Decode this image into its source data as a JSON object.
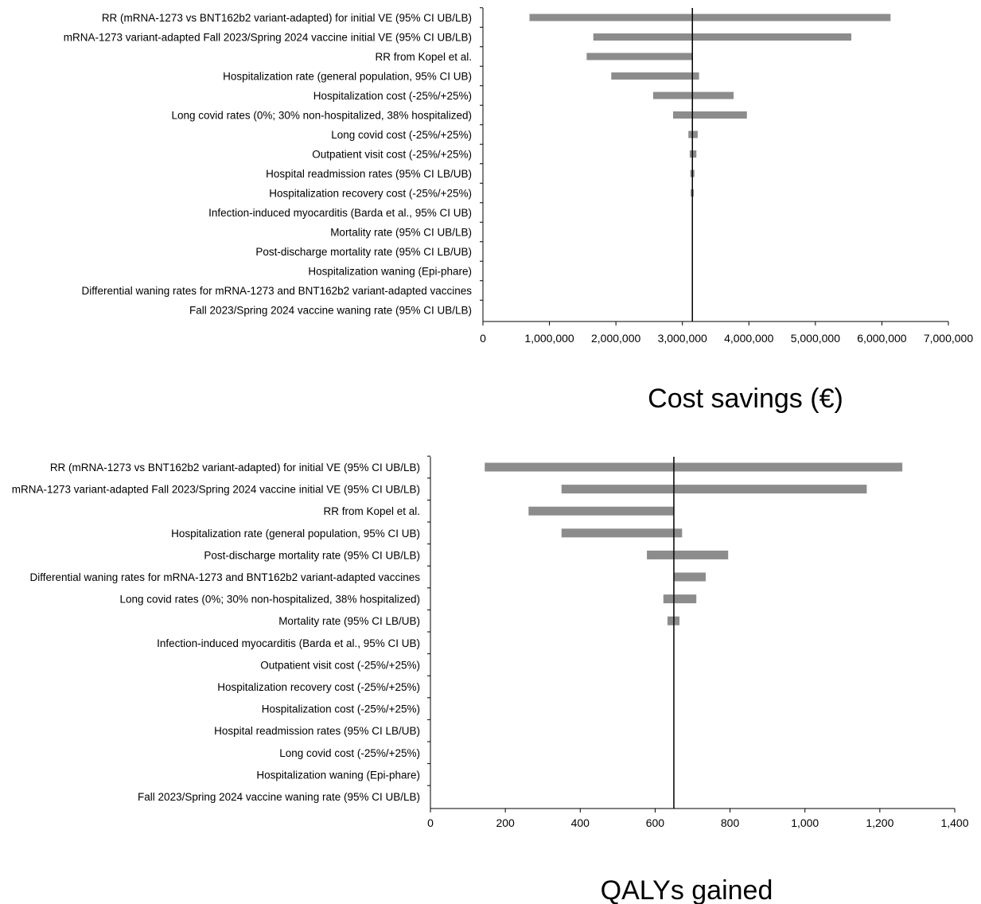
{
  "chart_data": [
    {
      "type": "bar",
      "orientation": "horizontal",
      "chart_subtype": "tornado",
      "xlabel": "Cost savings (€)",
      "xlim": [
        0,
        7000000
      ],
      "xticks": [
        0,
        1000000,
        2000000,
        3000000,
        4000000,
        5000000,
        6000000,
        7000000
      ],
      "xtick_labels": [
        "0",
        "1,000,000",
        "2,000,000",
        "3,000,000",
        "4,000,000",
        "5,000,000",
        "6,000,000",
        "7,000,000"
      ],
      "base_value": 3150000,
      "grid": false,
      "categories": [
        "RR (mRNA-1273 vs BNT162b2 variant-adapted) for initial VE (95% CI UB/LB)",
        "mRNA-1273 variant-adapted Fall 2023/Spring 2024 vaccine initial VE (95% CI UB/LB)",
        "RR from Kopel et al.",
        "Hospitalization rate (general population, 95% CI UB)",
        "Hospitalization cost (-25%/+25%)",
        "Long covid rates (0%; 30% non-hospitalized, 38% hospitalized)",
        "Long covid cost (-25%/+25%)",
        "Outpatient visit cost (-25%/+25%)",
        "Hospital readmission rates (95% CI LB/UB)",
        "Hospitalization recovery cost (-25%/+25%)",
        "Infection-induced myocarditis (Barda et al., 95% CI UB)",
        "Mortality rate (95% CI UB/LB)",
        "Post-discharge mortality rate (95% CI LB/UB)",
        "Hospitalization waning (Epi-phare)",
        "Differential waning rates for mRNA-1273 and BNT162b2 variant-adapted vaccines",
        "Fall 2023/Spring 2024 vaccine waning rate (95% CI UB/LB)"
      ],
      "ranges": [
        [
          700000,
          6130000
        ],
        [
          1660000,
          5540000
        ],
        [
          1560000,
          3150000
        ],
        [
          1930000,
          3250000
        ],
        [
          2560000,
          3770000
        ],
        [
          2860000,
          3970000
        ],
        [
          3090000,
          3230000
        ],
        [
          3110000,
          3210000
        ],
        [
          3120000,
          3180000
        ],
        [
          3125000,
          3170000
        ],
        [
          3150000,
          3150000
        ],
        [
          3150000,
          3150000
        ],
        [
          3150000,
          3150000
        ],
        [
          3150000,
          3150000
        ],
        [
          3150000,
          3150000
        ],
        [
          3150000,
          3150000
        ]
      ]
    },
    {
      "type": "bar",
      "orientation": "horizontal",
      "chart_subtype": "tornado",
      "xlabel": "QALYs gained",
      "xlim": [
        0,
        1400
      ],
      "xticks": [
        0,
        200,
        400,
        600,
        800,
        1000,
        1200,
        1400
      ],
      "xtick_labels": [
        "0",
        "200",
        "400",
        "600",
        "800",
        "1,000",
        "1,200",
        "1,400"
      ],
      "base_value": 650,
      "grid": false,
      "categories": [
        "RR (mRNA-1273 vs BNT162b2 variant-adapted) for initial VE (95% CI UB/LB)",
        "mRNA-1273 variant-adapted Fall 2023/Spring 2024 vaccine initial VE (95% CI UB/LB)",
        "RR from Kopel et al.",
        "Hospitalization rate (general population, 95% CI UB)",
        "Post-discharge mortality rate (95% CI UB/LB)",
        "Differential waning rates for mRNA-1273 and BNT162b2 variant-adapted vaccines",
        "Long covid rates (0%; 30% non-hospitalized, 38% hospitalized)",
        "Mortality rate (95% CI LB/UB)",
        "Infection-induced myocarditis (Barda et al., 95% CI UB)",
        "Outpatient visit cost (-25%/+25%)",
        "Hospitalization recovery cost (-25%/+25%)",
        "Hospitalization cost (-25%/+25%)",
        "Hospital readmission rates (95% CI LB/UB)",
        "Long covid cost (-25%/+25%)",
        "Hospitalization waning (Epi-phare)",
        "Fall 2023/Spring 2024 vaccine waning rate (95% CI UB/LB)"
      ],
      "ranges": [
        [
          145,
          1260
        ],
        [
          350,
          1165
        ],
        [
          262,
          650
        ],
        [
          350,
          672
        ],
        [
          578,
          795
        ],
        [
          650,
          735
        ],
        [
          622,
          710
        ],
        [
          633,
          665
        ],
        [
          650,
          650
        ],
        [
          650,
          650
        ],
        [
          650,
          650
        ],
        [
          650,
          650
        ],
        [
          650,
          650
        ],
        [
          650,
          650
        ],
        [
          650,
          650
        ],
        [
          650,
          650
        ]
      ]
    }
  ]
}
